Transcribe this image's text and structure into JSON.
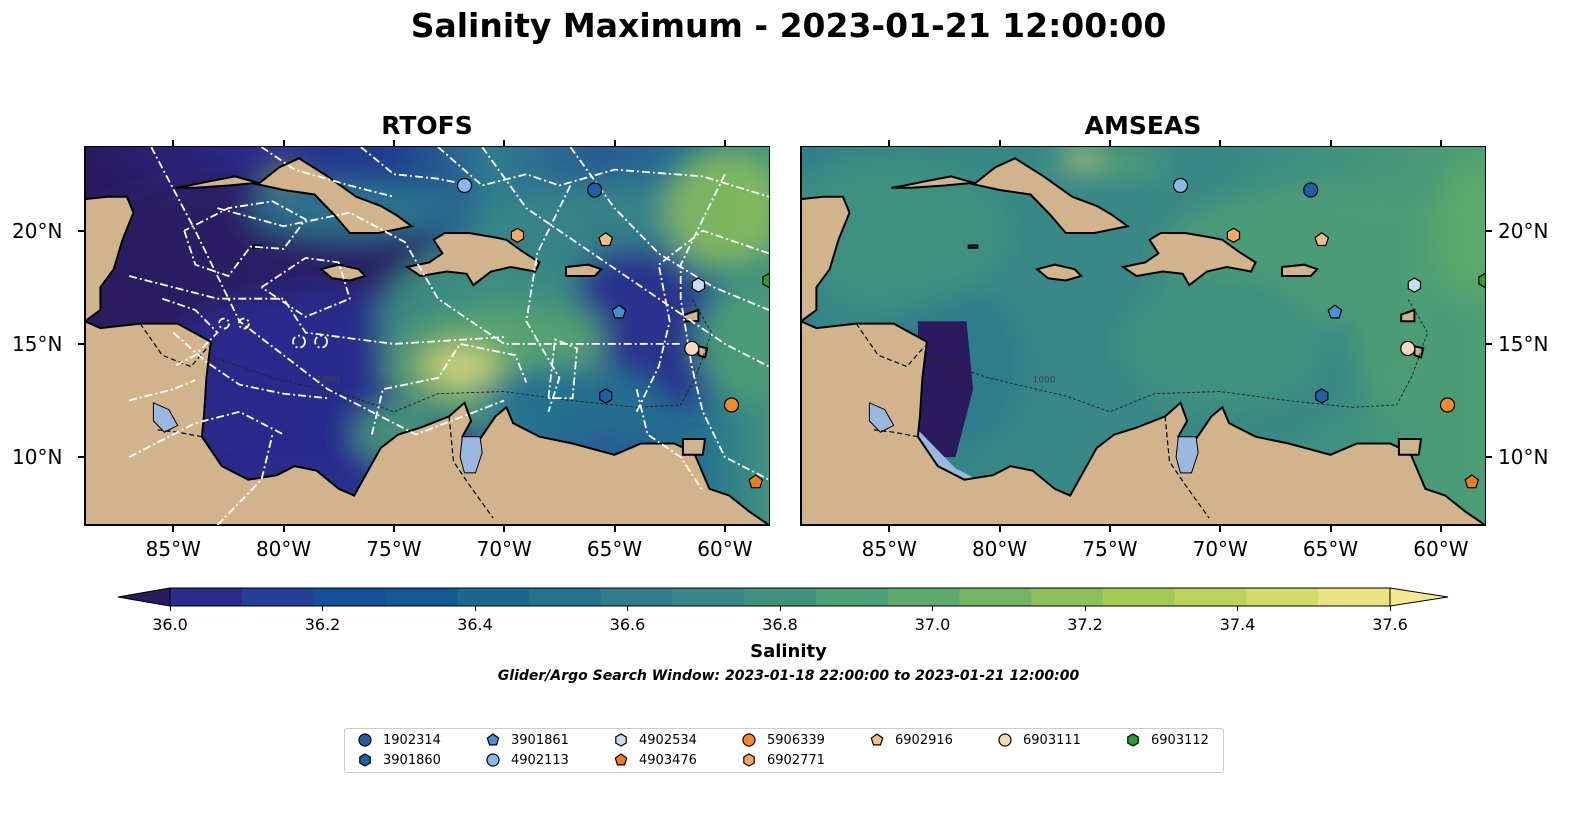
{
  "title": "Salinity Maximum - 2023-01-21 12:00:00",
  "panels": [
    {
      "title": "RTOFS"
    },
    {
      "title": "AMSEAS"
    }
  ],
  "axes": {
    "lon_labels": [
      "85°W",
      "80°W",
      "75°W",
      "70°W",
      "65°W",
      "60°W"
    ],
    "lon_values": [
      -85,
      -80,
      -75,
      -70,
      -65,
      -60
    ],
    "lat_labels": [
      "20°N",
      "15°N",
      "10°N"
    ],
    "lat_values": [
      20,
      15,
      10
    ],
    "lon_range": [
      -89,
      -58
    ],
    "lat_range": [
      7,
      23.7
    ]
  },
  "colorbar": {
    "label": "Salinity",
    "tick_labels": [
      "36.0",
      "36.2",
      "36.4",
      "36.6",
      "36.8",
      "37.0",
      "37.2",
      "37.4",
      "37.6"
    ],
    "tick_values": [
      36.0,
      36.2,
      36.4,
      36.6,
      36.8,
      37.0,
      37.2,
      37.4,
      37.6
    ],
    "range": [
      36.0,
      37.6
    ],
    "extend": "both",
    "colormap": "haline",
    "colors": [
      "#2a1a5e",
      "#2c2a8c",
      "#20409a",
      "#164f99",
      "#135a94",
      "#1a6790",
      "#247290",
      "#2f7c8d",
      "#378886",
      "#40937e",
      "#4d9e74",
      "#5daa6b",
      "#72b562",
      "#8bc05a",
      "#a3ca55",
      "#bcd45b",
      "#d3dc68",
      "#e9e581",
      "#f4e98e"
    ]
  },
  "search_window": "Glider/Argo Search Window: 2023-01-18 22:00:00 to 2023-01-21 12:00:00",
  "contour_label": "1000",
  "legend": [
    {
      "id": "1902314",
      "marker": "circle",
      "color": "#1f5fa8"
    },
    {
      "id": "3901860",
      "marker": "hexagon",
      "color": "#1f5fa8"
    },
    {
      "id": "3901861",
      "marker": "pentagon",
      "color": "#4a8fd6"
    },
    {
      "id": "4902113",
      "marker": "circle",
      "color": "#8ab8e8"
    },
    {
      "id": "4902534",
      "marker": "hexagon",
      "color": "#c6dff5"
    },
    {
      "id": "4903476",
      "marker": "pentagon",
      "color": "#f07c1a"
    },
    {
      "id": "5906339",
      "marker": "circle",
      "color": "#f4892a"
    },
    {
      "id": "6902771",
      "marker": "hexagon",
      "color": "#f7a862"
    },
    {
      "id": "6902916",
      "marker": "pentagon",
      "color": "#f8be86"
    },
    {
      "id": "6903111",
      "marker": "circle",
      "color": "#fbd7b9"
    },
    {
      "id": "6903112",
      "marker": "hexagon",
      "color": "#2ca02c"
    }
  ],
  "stations": [
    {
      "id": "1902314",
      "lon": -65.9,
      "lat": 21.8
    },
    {
      "id": "4902113",
      "lon": -71.8,
      "lat": 22.0
    },
    {
      "id": "6902771",
      "lon": -69.4,
      "lat": 19.8
    },
    {
      "id": "6902916",
      "lon": -65.4,
      "lat": 19.6
    },
    {
      "id": "4902534",
      "lon": -61.2,
      "lat": 17.6
    },
    {
      "id": "6903112",
      "lon": -58.0,
      "lat": 17.8
    },
    {
      "id": "3901861",
      "lon": -64.8,
      "lat": 16.4
    },
    {
      "id": "6903111",
      "lon": -61.5,
      "lat": 14.8
    },
    {
      "id": "3901860",
      "lon": -65.4,
      "lat": 12.7
    },
    {
      "id": "5906339",
      "lon": -59.7,
      "lat": 12.3
    },
    {
      "id": "4903476",
      "lon": -58.6,
      "lat": 8.9
    }
  ],
  "land_color": "#d2b48c",
  "lake_color": "#9ab8e0"
}
